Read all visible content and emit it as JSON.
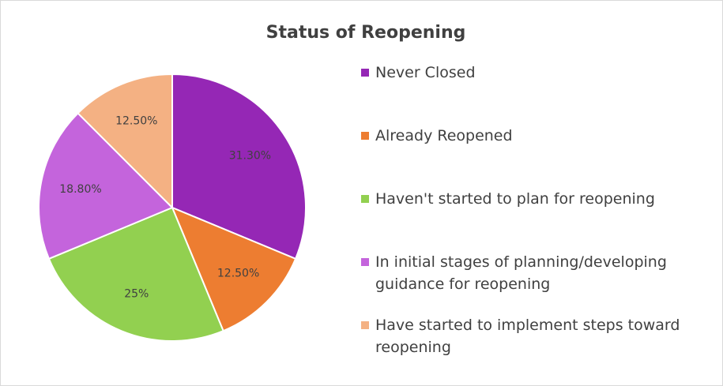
{
  "chart_data": {
    "type": "pie",
    "title": "Status of Reopening",
    "categories": [
      "Never Closed",
      "Already Reopened",
      "Haven't started to plan for reopening",
      "In initial stages of planning/developing guidance for reopening",
      "Have started to implement steps toward reopening"
    ],
    "values": [
      31.3,
      12.5,
      25,
      18.8,
      12.5
    ],
    "value_labels": [
      "31.30%",
      "12.50%",
      "25%",
      "18.80%",
      "12.50%"
    ],
    "colors": [
      "#9527b5",
      "#ed7d31",
      "#92d050",
      "#c464dc",
      "#f4b183"
    ],
    "legend": "right"
  }
}
